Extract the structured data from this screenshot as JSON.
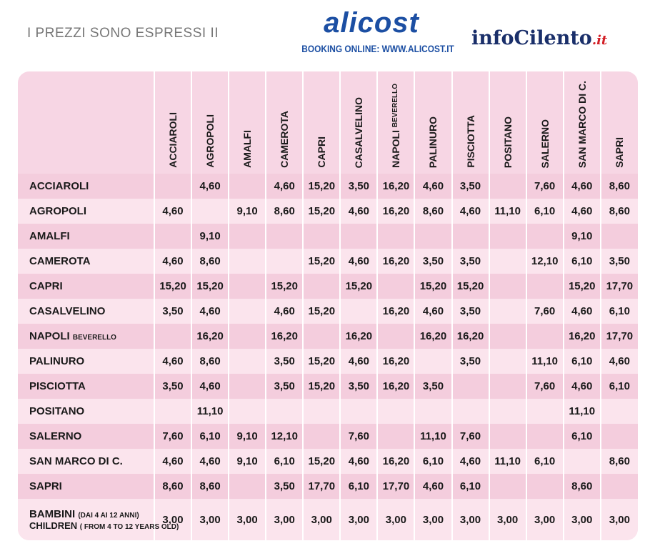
{
  "header": {
    "note": "I PREZZI SONO ESPRESSI II",
    "logo1": {
      "brand": "alicost",
      "booking": "BOOKING ONLINE: WWW.ALICOST.IT"
    },
    "logo2": {
      "brand": "infoCilento",
      "tld": ".it"
    }
  },
  "table": {
    "columns": [
      {
        "name": "ACCIAROLI"
      },
      {
        "name": "AGROPOLI"
      },
      {
        "name": "AMALFI"
      },
      {
        "name": "CAMEROTA"
      },
      {
        "name": "CAPRI"
      },
      {
        "name": "CASALVELINO"
      },
      {
        "name": "NAPOLI",
        "sub": "BEVERELLO"
      },
      {
        "name": "PALINURO"
      },
      {
        "name": "PISCIOTTA"
      },
      {
        "name": "POSITANO"
      },
      {
        "name": "SALERNO"
      },
      {
        "name": "SAN MARCO DI C."
      },
      {
        "name": "SAPRI"
      }
    ],
    "rows": [
      {
        "label": "ACCIAROLI",
        "cells": [
          null,
          "4,60",
          null,
          "4,60",
          "15,20",
          "3,50",
          "16,20",
          "4,60",
          "3,50",
          null,
          "7,60",
          "4,60",
          "8,60"
        ]
      },
      {
        "label": "AGROPOLI",
        "cells": [
          "4,60",
          null,
          "9,10",
          "8,60",
          "15,20",
          "4,60",
          "16,20",
          "8,60",
          "4,60",
          "11,10",
          "6,10",
          "4,60",
          "8,60"
        ]
      },
      {
        "label": "AMALFI",
        "cells": [
          null,
          "9,10",
          null,
          null,
          null,
          null,
          null,
          null,
          null,
          null,
          null,
          "9,10",
          null
        ]
      },
      {
        "label": "CAMEROTA",
        "cells": [
          "4,60",
          "8,60",
          null,
          null,
          "15,20",
          "4,60",
          "16,20",
          "3,50",
          "3,50",
          null,
          "12,10",
          "6,10",
          "3,50"
        ]
      },
      {
        "label": "CAPRI",
        "cells": [
          "15,20",
          "15,20",
          null,
          "15,20",
          null,
          "15,20",
          null,
          "15,20",
          "15,20",
          null,
          null,
          "15,20",
          "17,70"
        ]
      },
      {
        "label": "CASALVELINO",
        "cells": [
          "3,50",
          "4,60",
          null,
          "4,60",
          "15,20",
          null,
          "16,20",
          "4,60",
          "3,50",
          null,
          "7,60",
          "4,60",
          "6,10"
        ]
      },
      {
        "label": "NAPOLI",
        "sub": "BEVERELLO",
        "cells": [
          null,
          "16,20",
          null,
          "16,20",
          null,
          "16,20",
          null,
          "16,20",
          "16,20",
          null,
          null,
          "16,20",
          "17,70"
        ]
      },
      {
        "label": "PALINURO",
        "cells": [
          "4,60",
          "8,60",
          null,
          "3,50",
          "15,20",
          "4,60",
          "16,20",
          null,
          "3,50",
          null,
          "11,10",
          "6,10",
          "4,60"
        ]
      },
      {
        "label": "PISCIOTTA",
        "cells": [
          "3,50",
          "4,60",
          null,
          "3,50",
          "15,20",
          "3,50",
          "16,20",
          "3,50",
          null,
          null,
          "7,60",
          "4,60",
          "6,10"
        ]
      },
      {
        "label": "POSITANO",
        "cells": [
          null,
          "11,10",
          null,
          null,
          null,
          null,
          null,
          null,
          null,
          null,
          null,
          "11,10",
          null
        ]
      },
      {
        "label": "SALERNO",
        "cells": [
          "7,60",
          "6,10",
          "9,10",
          "12,10",
          null,
          "7,60",
          null,
          "11,10",
          "7,60",
          null,
          null,
          "6,10",
          null
        ]
      },
      {
        "label": "SAN MARCO DI C.",
        "cells": [
          "4,60",
          "4,60",
          "9,10",
          "6,10",
          "15,20",
          "4,60",
          "16,20",
          "6,10",
          "4,60",
          "11,10",
          "6,10",
          null,
          "8,60"
        ]
      },
      {
        "label": "SAPRI",
        "cells": [
          "8,60",
          "8,60",
          null,
          "3,50",
          "17,70",
          "6,10",
          "17,70",
          "4,60",
          "6,10",
          null,
          null,
          "8,60",
          null
        ]
      },
      {
        "label": "BAMBINI",
        "sub": "(DAI 4 AI 12 ANNI)",
        "label2": "CHILDREN",
        "sub2": "( FROM 4 TO 12 YEARS OLD)",
        "cells": [
          "3,00",
          "3,00",
          "3,00",
          "3,00",
          "3,00",
          "3,00",
          "3,00",
          "3,00",
          "3,00",
          "3,00",
          "3,00",
          "3,00",
          "3,00"
        ]
      }
    ]
  }
}
